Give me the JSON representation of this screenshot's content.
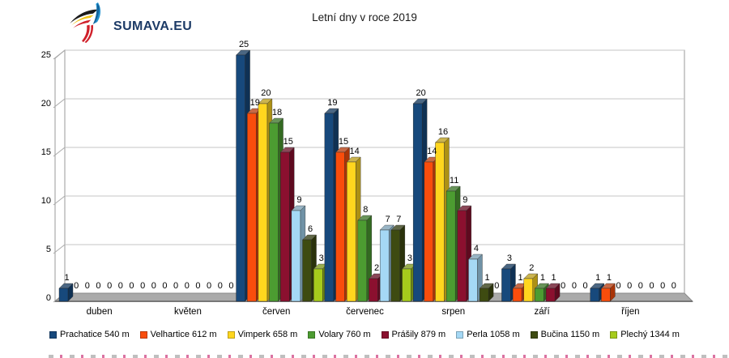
{
  "logo": {
    "text": "SUMAVA.EU"
  },
  "chart_data": {
    "type": "bar",
    "title": "Letní dny v roce 2019",
    "categories": [
      "duben",
      "květen",
      "červen",
      "červenec",
      "srpen",
      "září",
      "říjen"
    ],
    "series": [
      {
        "name": "Prachatice 540 m",
        "color": "#17497C",
        "values": [
          1,
          0,
          25,
          19,
          20,
          3,
          1
        ]
      },
      {
        "name": "Velhartice 612 m",
        "color": "#F94D0C",
        "values": [
          0,
          0,
          19,
          15,
          14,
          1,
          1
        ]
      },
      {
        "name": "Vimperk 658 m",
        "color": "#FFD61E",
        "values": [
          0,
          0,
          20,
          14,
          16,
          2,
          0
        ]
      },
      {
        "name": "Volary 760 m",
        "color": "#4C9C31",
        "values": [
          0,
          0,
          18,
          8,
          11,
          1,
          0
        ]
      },
      {
        "name": "Prášily 879 m",
        "color": "#8B102F",
        "values": [
          0,
          0,
          15,
          2,
          9,
          1,
          0
        ]
      },
      {
        "name": "Perla 1058 m",
        "color": "#A5D8F5",
        "values": [
          0,
          0,
          9,
          7,
          4,
          0,
          0
        ]
      },
      {
        "name": "Bučina 1150 m",
        "color": "#3E4B11",
        "values": [
          0,
          0,
          6,
          7,
          1,
          0,
          0
        ]
      },
      {
        "name": "Plechý 1344 m",
        "color": "#A6CB1C",
        "values": [
          0,
          0,
          3,
          3,
          0,
          0,
          0
        ]
      }
    ],
    "ylim": [
      0,
      25
    ],
    "yticks": [
      0,
      5,
      10,
      15,
      20,
      25
    ],
    "grid": true,
    "legend_position": "bottom",
    "show_value_labels": true
  }
}
